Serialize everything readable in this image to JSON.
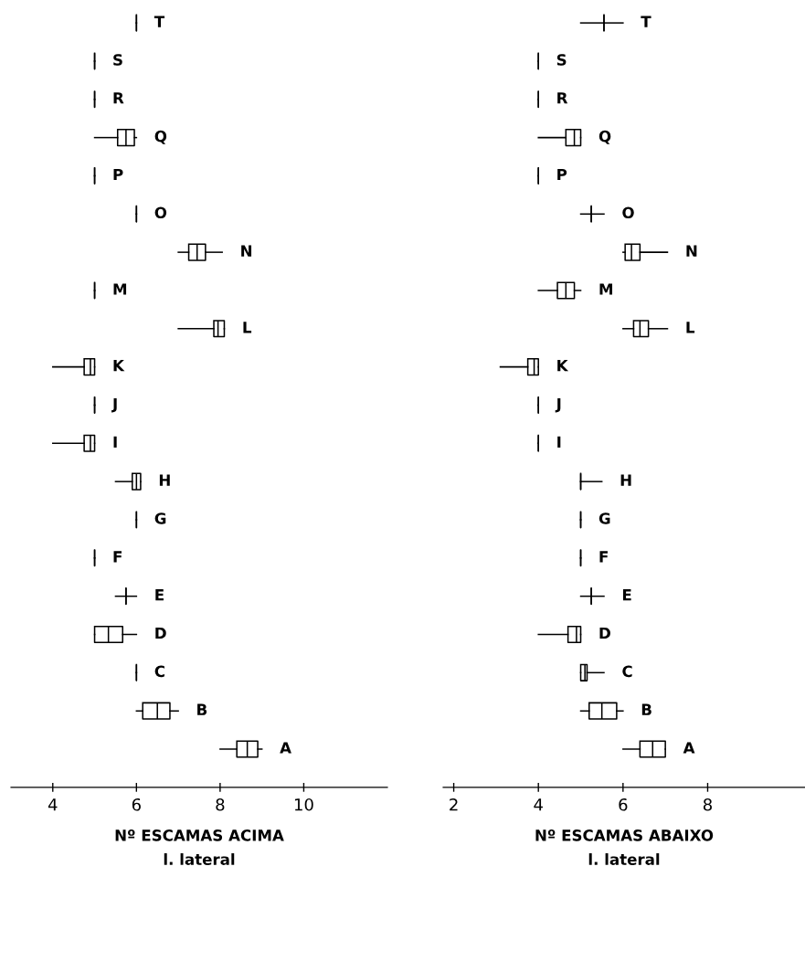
{
  "chart_data": [
    {
      "type": "box",
      "orientation": "horizontal",
      "xlabel": "Nº ESCAMAS ACIMA\nl. lateral",
      "categories": [
        "T",
        "S",
        "R",
        "Q",
        "P",
        "O",
        "N",
        "M",
        "L",
        "K",
        "J",
        "I",
        "H",
        "G",
        "F",
        "E",
        "D",
        "C",
        "B",
        "A"
      ],
      "xlim": [
        3,
        12
      ],
      "xticks": [
        4,
        6,
        8,
        10
      ],
      "grid": false,
      "boxes": [
        {
          "low": 6,
          "q1": 6,
          "median": 6,
          "q3": 6,
          "high": 6
        },
        {
          "low": 5,
          "q1": 5,
          "median": 5,
          "q3": 5,
          "high": 5
        },
        {
          "low": 5,
          "q1": 5,
          "median": 5,
          "q3": 5,
          "high": 5
        },
        {
          "low": 5,
          "q1": 5.55,
          "median": 5.75,
          "q3": 5.95,
          "high": 6
        },
        {
          "low": 5,
          "q1": 5,
          "median": 5,
          "q3": 5,
          "high": 5
        },
        {
          "low": 6,
          "q1": 6,
          "median": 6,
          "q3": 6,
          "high": 6
        },
        {
          "low": 7,
          "q1": 7.25,
          "median": 7.45,
          "q3": 7.65,
          "high": 8.05
        },
        {
          "low": 5,
          "q1": 5,
          "median": 5,
          "q3": 5,
          "high": 5
        },
        {
          "low": 7,
          "q1": 7.85,
          "median": 7.95,
          "q3": 8.1,
          "high": 8.1
        },
        {
          "low": 4,
          "q1": 4.75,
          "median": 4.9,
          "q3": 5,
          "high": 5
        },
        {
          "low": 5,
          "q1": 5,
          "median": 5,
          "q3": 5,
          "high": 5
        },
        {
          "low": 4,
          "q1": 4.75,
          "median": 4.9,
          "q3": 5,
          "high": 5
        },
        {
          "low": 5.5,
          "q1": 5.9,
          "median": 6,
          "q3": 6.1,
          "high": 6.1
        },
        {
          "low": 6,
          "q1": 6,
          "median": 6,
          "q3": 6,
          "high": 6
        },
        {
          "low": 5,
          "q1": 5,
          "median": 5,
          "q3": 5,
          "high": 5
        },
        {
          "low": 5.5,
          "q1": 5.75,
          "median": 5.75,
          "q3": 5.75,
          "high": 6
        },
        {
          "low": 5,
          "q1": 5,
          "median": 5.33,
          "q3": 5.67,
          "high": 6
        },
        {
          "low": 6,
          "q1": 6,
          "median": 6,
          "q3": 6,
          "high": 6
        },
        {
          "low": 6,
          "q1": 6.15,
          "median": 6.5,
          "q3": 6.8,
          "high": 7
        },
        {
          "low": 8,
          "q1": 8.4,
          "median": 8.65,
          "q3": 8.9,
          "high": 9
        }
      ]
    },
    {
      "type": "box",
      "orientation": "horizontal",
      "xlabel": "Nº ESCAMAS ABAIXO\nl. lateral",
      "categories": [
        "T",
        "S",
        "R",
        "Q",
        "P",
        "O",
        "N",
        "M",
        "L",
        "K",
        "J",
        "I",
        "H",
        "G",
        "F",
        "E",
        "D",
        "C",
        "B",
        "A"
      ],
      "xlim": [
        1.75,
        10.3
      ],
      "xticks": [
        2,
        4,
        6,
        8
      ],
      "grid": false,
      "boxes": [
        {
          "low": 5,
          "q1": 5.55,
          "median": 5.55,
          "q3": 5.55,
          "high": 6
        },
        {
          "low": 4,
          "q1": 4,
          "median": 4,
          "q3": 4,
          "high": 4
        },
        {
          "low": 4,
          "q1": 4,
          "median": 4,
          "q3": 4,
          "high": 4
        },
        {
          "low": 4,
          "q1": 4.65,
          "median": 4.85,
          "q3": 5,
          "high": 5
        },
        {
          "low": 4,
          "q1": 4,
          "median": 4,
          "q3": 4,
          "high": 4
        },
        {
          "low": 5,
          "q1": 5.25,
          "median": 5.25,
          "q3": 5.25,
          "high": 5.55
        },
        {
          "low": 6,
          "q1": 6.05,
          "median": 6.2,
          "q3": 6.4,
          "high": 7.05
        },
        {
          "low": 4,
          "q1": 4.45,
          "median": 4.65,
          "q3": 4.85,
          "high": 5
        },
        {
          "low": 6,
          "q1": 6.25,
          "median": 6.4,
          "q3": 6.6,
          "high": 7.05
        },
        {
          "low": 3.1,
          "q1": 3.75,
          "median": 3.9,
          "q3": 4,
          "high": 4
        },
        {
          "low": 4,
          "q1": 4,
          "median": 4,
          "q3": 4,
          "high": 4
        },
        {
          "low": 4,
          "q1": 4,
          "median": 4,
          "q3": 4,
          "high": 4
        },
        {
          "low": 5,
          "q1": 5,
          "median": 5,
          "q3": 5,
          "high": 5.5
        },
        {
          "low": 5,
          "q1": 5,
          "median": 5,
          "q3": 5,
          "high": 5
        },
        {
          "low": 5,
          "q1": 5,
          "median": 5,
          "q3": 5,
          "high": 5
        },
        {
          "low": 5,
          "q1": 5.25,
          "median": 5.25,
          "q3": 5.25,
          "high": 5.55
        },
        {
          "low": 4,
          "q1": 4.7,
          "median": 4.9,
          "q3": 5,
          "high": 5
        },
        {
          "low": 5,
          "q1": 5,
          "median": 5.1,
          "q3": 5.15,
          "high": 5.55
        },
        {
          "low": 5,
          "q1": 5.2,
          "median": 5.5,
          "q3": 5.85,
          "high": 6
        },
        {
          "low": 6,
          "q1": 6.4,
          "median": 6.7,
          "q3": 7,
          "high": 7
        }
      ]
    }
  ]
}
